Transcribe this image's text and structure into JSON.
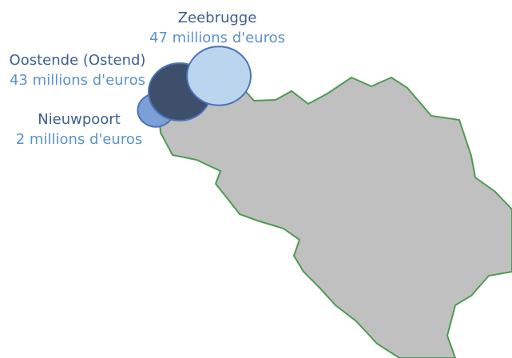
{
  "ports": [
    {
      "name": "Zeebrugge",
      "value": 47,
      "value_label": "47 millions d'euros"
    },
    {
      "name": "Oostende (Ostend)",
      "value": 43,
      "value_label": "43 millions d'euros"
    },
    {
      "name": "Nieuwpoort",
      "value": 2,
      "value_label": "2 millions d'euros"
    }
  ]
}
